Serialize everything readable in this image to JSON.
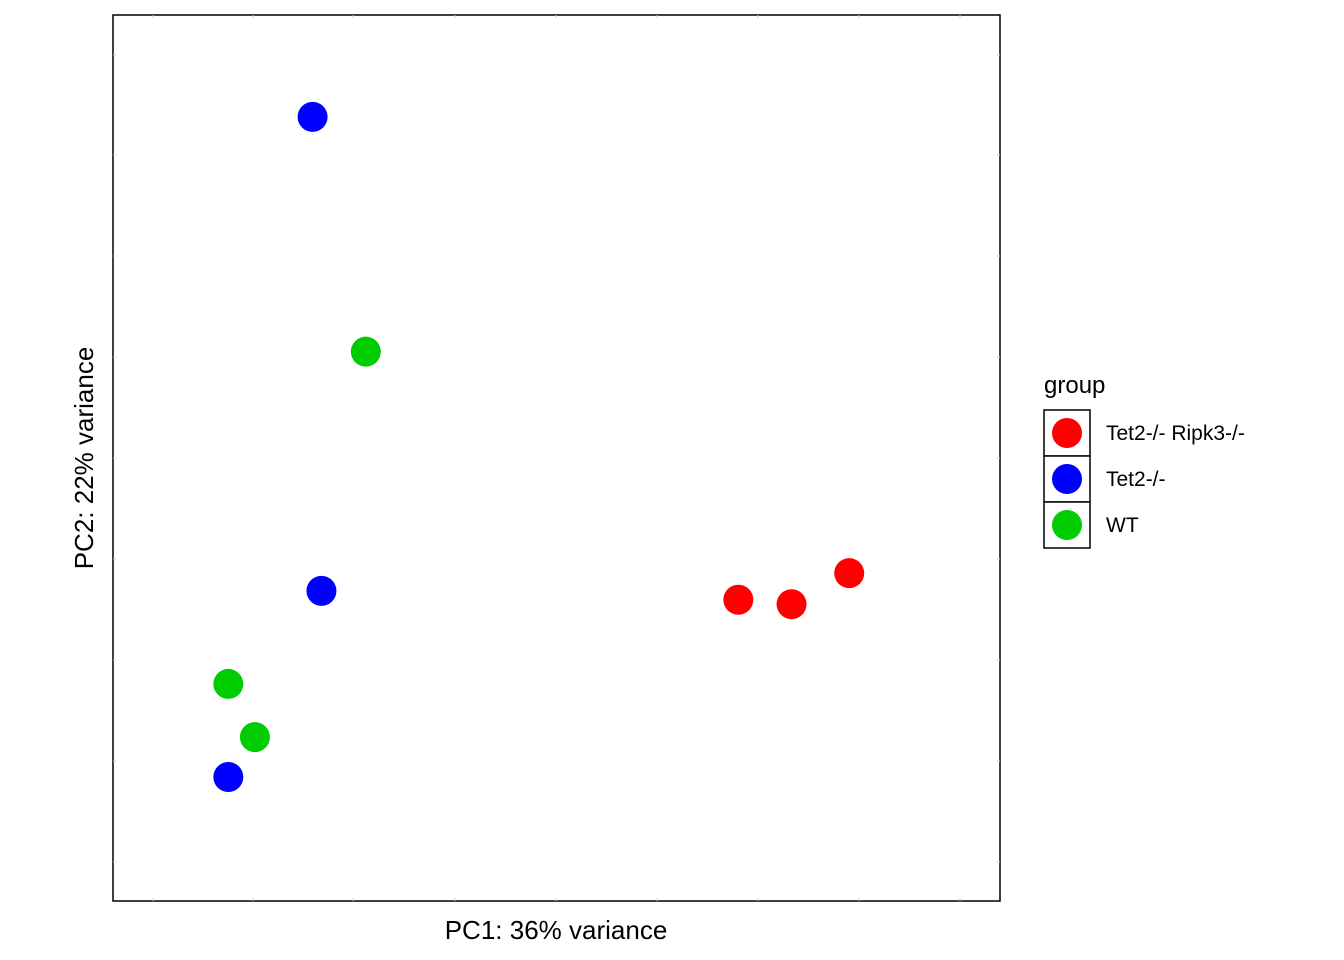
{
  "chart_data": {
    "type": "scatter",
    "xlabel": "PC1: 36% variance",
    "ylabel": "PC2: 22% variance",
    "grid": false,
    "legend": {
      "title": "group",
      "placement": "right",
      "entries": [
        {
          "label": "Tet2-/- Ripk3-/-",
          "color": "#ff0000"
        },
        {
          "label": "Tet2-/-",
          "color": "#0000ff"
        },
        {
          "label": "WT",
          "color": "#00cc00"
        }
      ]
    },
    "xlim": [
      0,
      100
    ],
    "ylim": [
      0,
      100
    ],
    "series": [
      {
        "name": "Tet2-/- Ripk3-/-",
        "color": "#ff0000",
        "points": [
          {
            "x": 70.5,
            "y": 34
          },
          {
            "x": 76.5,
            "y": 33.5
          },
          {
            "x": 83,
            "y": 37
          }
        ]
      },
      {
        "name": "Tet2-/-",
        "color": "#0000ff",
        "points": [
          {
            "x": 22.5,
            "y": 88.5
          },
          {
            "x": 23.5,
            "y": 35
          },
          {
            "x": 13,
            "y": 14
          }
        ]
      },
      {
        "name": "WT",
        "color": "#00cc00",
        "points": [
          {
            "x": 28.5,
            "y": 62
          },
          {
            "x": 13,
            "y": 24.5
          },
          {
            "x": 16,
            "y": 18.5
          }
        ]
      }
    ]
  }
}
